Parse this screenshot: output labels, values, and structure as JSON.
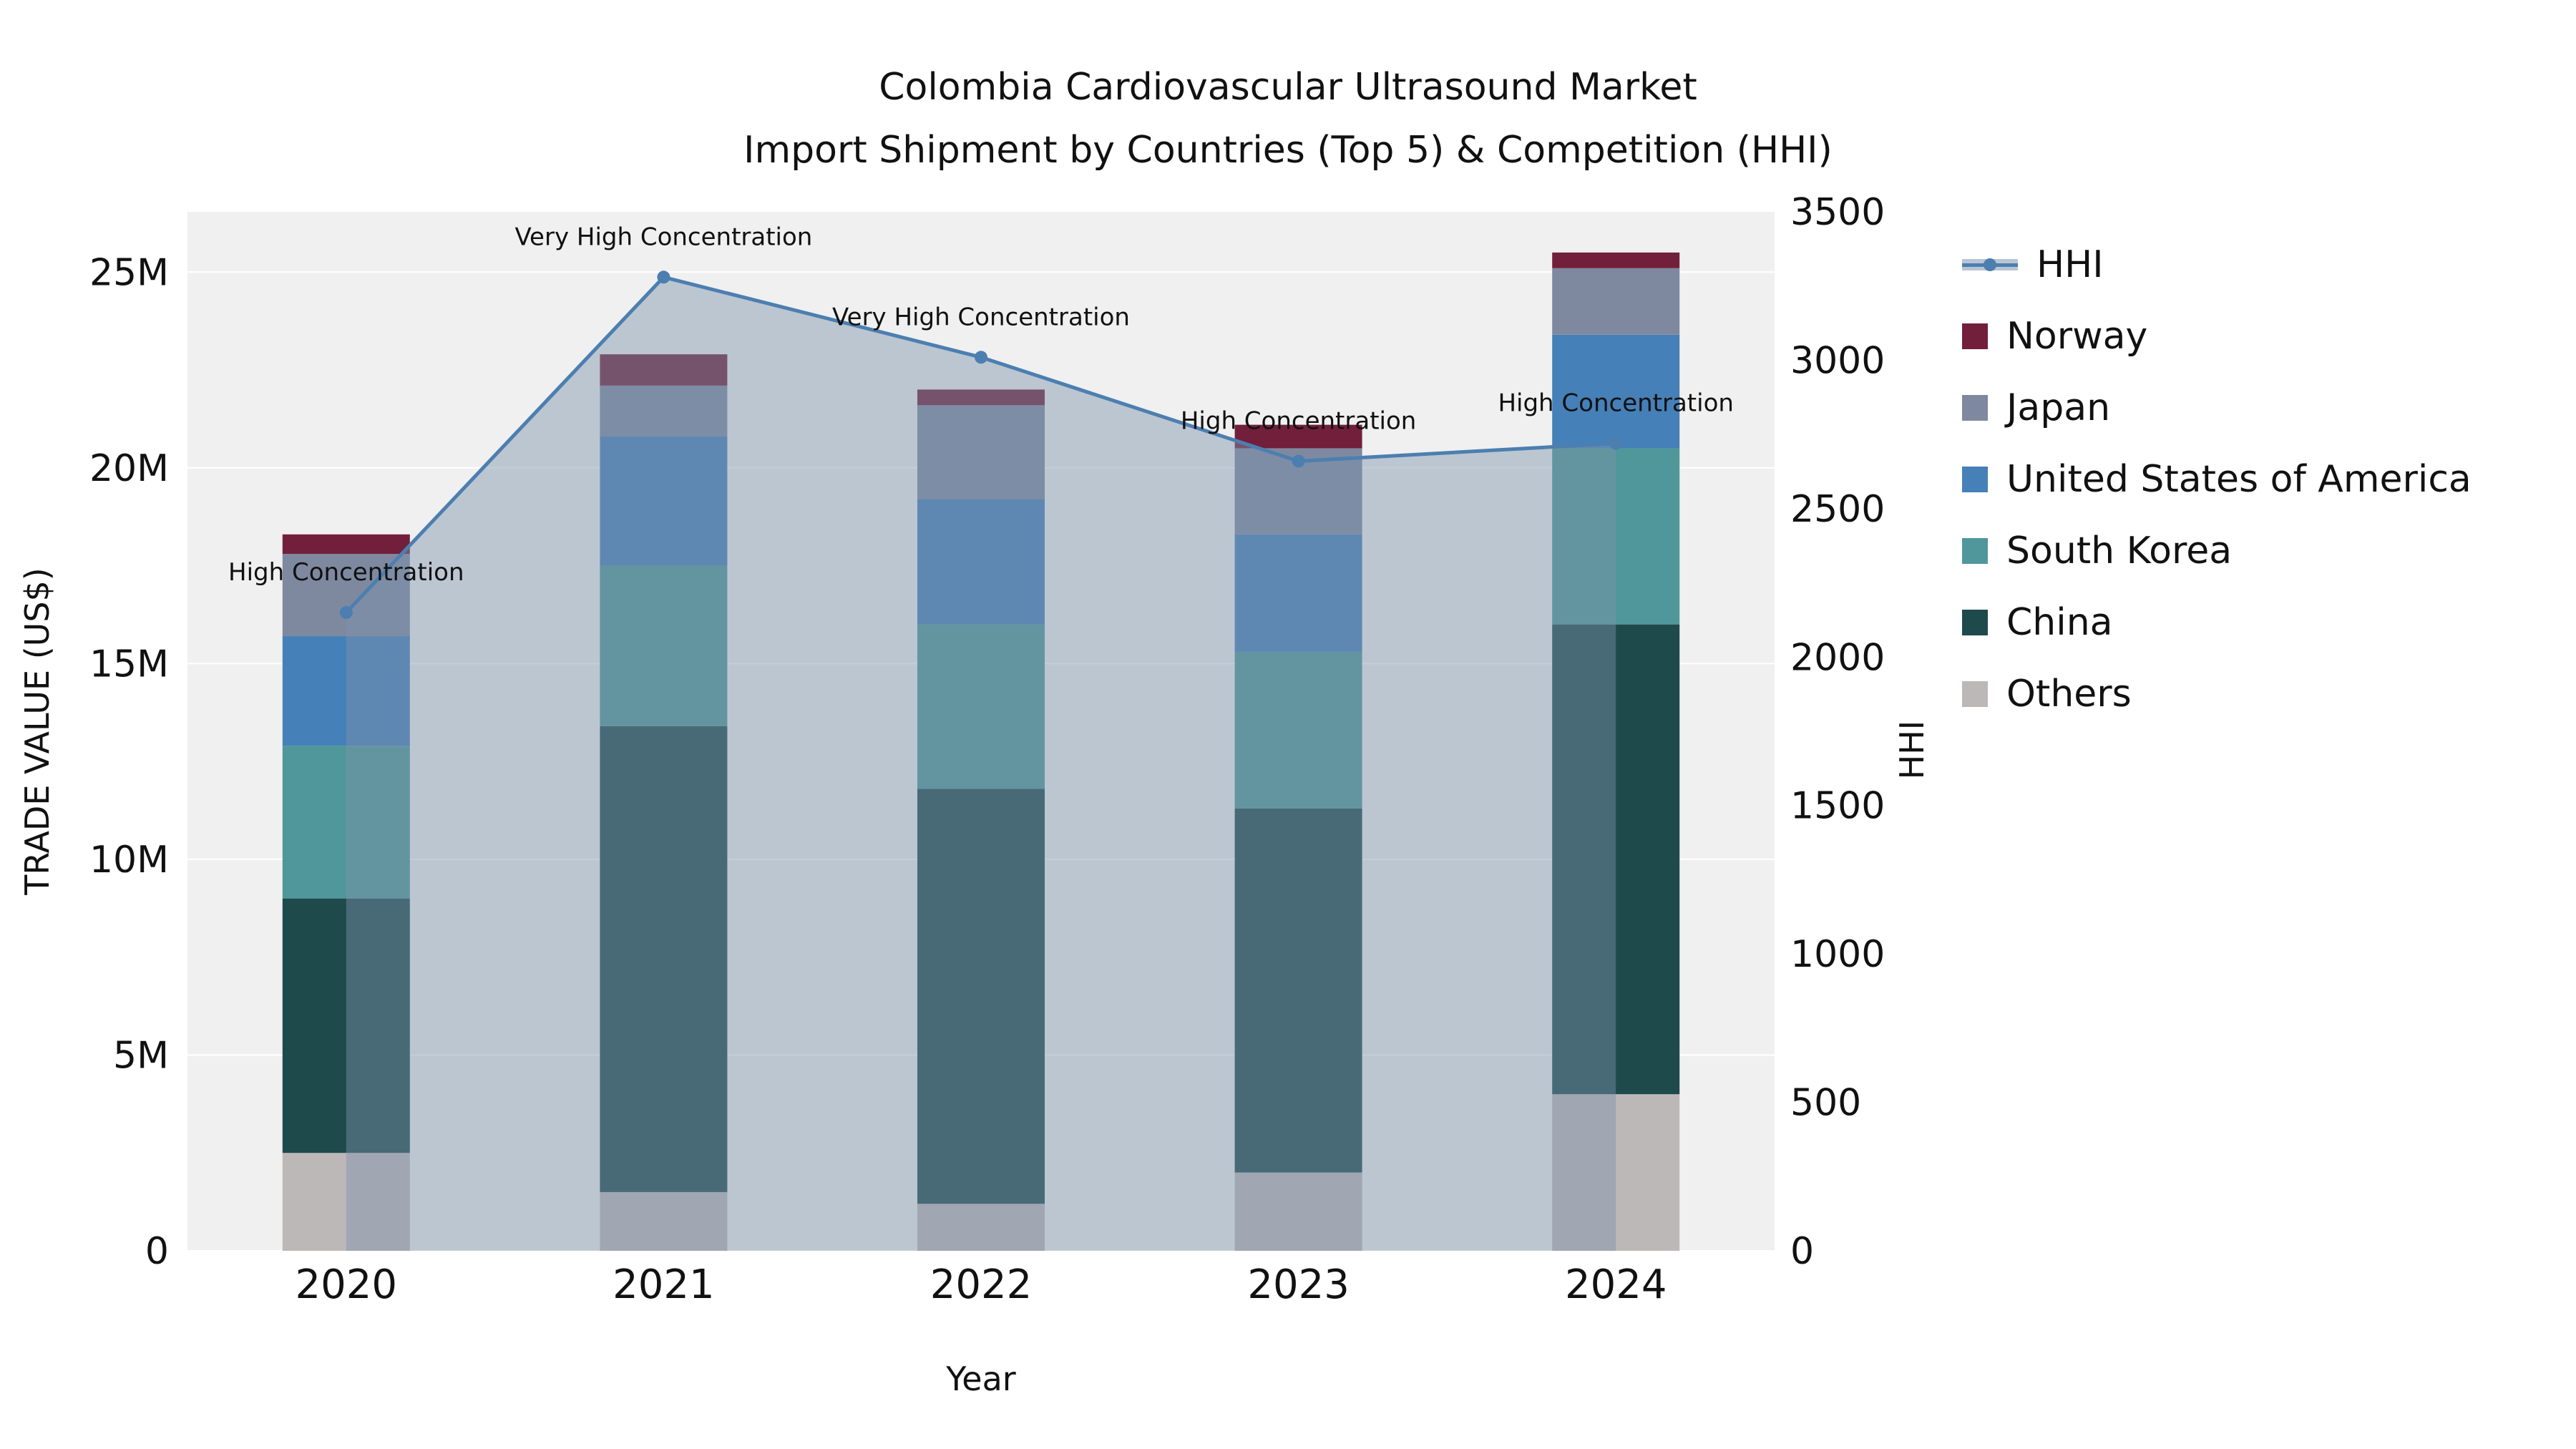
{
  "title_line1": "Colombia Cardiovascular Ultrasound Market",
  "title_line2": "Import Shipment by Countries (Top 5) & Competition (HHI)",
  "axes": {
    "y_left_label": "TRADE VALUE (US$)",
    "y_right_label": "HHI",
    "x_label": "Year",
    "y_left_tick_values": [
      0,
      5,
      10,
      15,
      20,
      25
    ],
    "y_left_tick_labels": [
      "0",
      "5M",
      "10M",
      "15M",
      "20M",
      "25M"
    ],
    "y_right_tick_values": [
      0,
      500,
      1000,
      1500,
      2000,
      2500,
      3000,
      3500
    ],
    "y_right_tick_labels": [
      "0",
      "500",
      "1000",
      "1500",
      "2000",
      "2500",
      "3000",
      "3500"
    ]
  },
  "legend": [
    {
      "label": "HHI",
      "type": "line",
      "color": "#4c7fb0",
      "fill": "#b9c5d4"
    },
    {
      "label": "Norway",
      "type": "swatch",
      "color": "#721f3b"
    },
    {
      "label": "Japan",
      "type": "swatch",
      "color": "#7e89a0"
    },
    {
      "label": "United States of America",
      "type": "swatch",
      "color": "#4580b8"
    },
    {
      "label": "South Korea",
      "type": "swatch",
      "color": "#4f979a"
    },
    {
      "label": "China",
      "type": "swatch",
      "color": "#1e4a4b"
    },
    {
      "label": "Others",
      "type": "swatch",
      "color": "#bdb8b8"
    }
  ],
  "chart_data": {
    "type": "bar+line",
    "title": "Colombia Cardiovascular Ultrasound Market Import Shipment by Countries (Top 5) & Competition (HHI)",
    "xlabel": "Year",
    "ylabel_left": "TRADE VALUE (US$)",
    "ylabel_right": "HHI",
    "unit_left": "millions USD",
    "categories": [
      "2020",
      "2021",
      "2022",
      "2023",
      "2024"
    ],
    "ylim_left": [
      0,
      26.54
    ],
    "ylim_right": [
      0,
      3500
    ],
    "series": [
      {
        "name": "Others",
        "values": [
          2.5,
          1.5,
          1.2,
          2.0,
          4.0
        ],
        "color": "#bdb8b8"
      },
      {
        "name": "China",
        "values": [
          6.5,
          11.9,
          10.6,
          9.3,
          12.0
        ],
        "color": "#1e4a4b"
      },
      {
        "name": "South Korea",
        "values": [
          3.9,
          4.1,
          4.2,
          4.0,
          4.5
        ],
        "color": "#4f979a"
      },
      {
        "name": "United States of America",
        "values": [
          2.8,
          3.3,
          3.2,
          3.0,
          2.9
        ],
        "color": "#4580b8"
      },
      {
        "name": "Japan",
        "values": [
          2.1,
          1.3,
          2.4,
          2.2,
          1.7
        ],
        "color": "#7e89a0"
      },
      {
        "name": "Norway",
        "values": [
          0.5,
          0.8,
          0.4,
          0.6,
          0.4
        ],
        "color": "#721f3b"
      }
    ],
    "totals": [
      18.3,
      22.9,
      22.0,
      21.1,
      25.5
    ],
    "hhi": {
      "name": "HHI",
      "values": [
        2150,
        3280,
        3010,
        2660,
        2720
      ],
      "line_color": "#4c7fb0",
      "area_color": "#7c93ab",
      "area_opacity": 0.45
    },
    "annotations": [
      "High Concentration",
      "Very High Concentration",
      "Very High Concentration",
      "High Concentration",
      "High Concentration"
    ],
    "legend_position": "right",
    "grid": true,
    "plot_background": "#f0f0f0"
  }
}
